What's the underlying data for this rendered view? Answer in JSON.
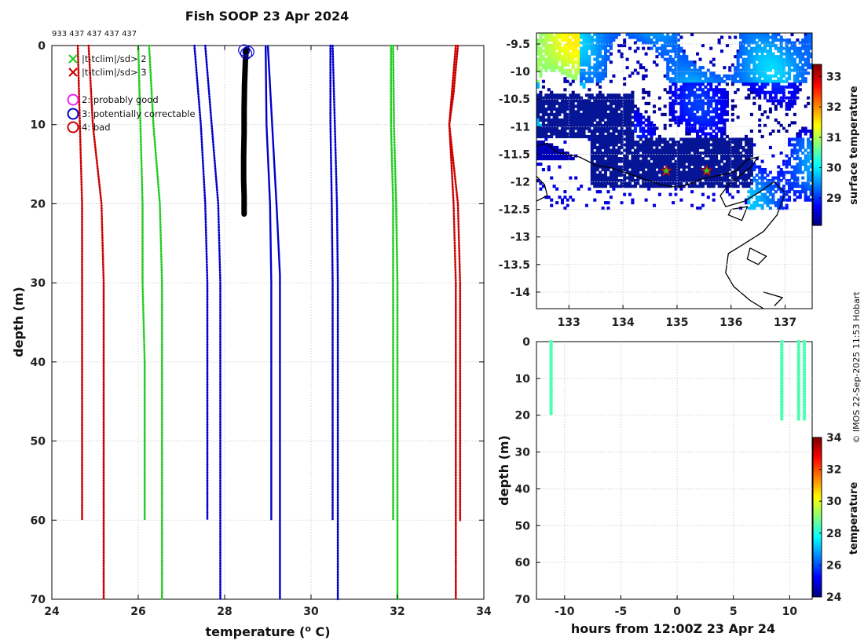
{
  "title": "Fish SOOP 23 Apr 2024",
  "counts_label": "933 437 437 437 437",
  "credit": "© IMOS 22-Sep-2025 11:53 Hobart",
  "legend": {
    "flag2": "|t-tclim|/sd> 2",
    "flag3": "|t-tclim|/sd> 3",
    "probably_good": "2: probably good",
    "potentially_correctable": "3: potentially correctable",
    "bad": "4: bad"
  },
  "colors": {
    "red": "#cc0000",
    "green": "#22cc22",
    "blue": "#0000cc",
    "black": "#000000",
    "magenta": "#ee22ee"
  },
  "chart_data": [
    {
      "id": "profile",
      "type": "line",
      "xlabel": "temperature (",
      "xlabel_sup": "o",
      "xlabel_end": " C)",
      "ylabel": "depth (m)",
      "xlim": [
        24,
        34
      ],
      "ylim": [
        70,
        0
      ],
      "xticks": [
        24,
        26,
        28,
        30,
        32,
        34
      ],
      "yticks": [
        0,
        10,
        20,
        30,
        40,
        50,
        60,
        70
      ],
      "series": [
        {
          "name": "clim -3sd (short)",
          "color": "red",
          "style": "dotted",
          "points": [
            [
              24.6,
              0
            ],
            [
              24.65,
              10
            ],
            [
              24.7,
              20
            ],
            [
              24.7,
              30
            ],
            [
              24.7,
              40
            ],
            [
              24.7,
              50
            ],
            [
              24.7,
              60
            ]
          ]
        },
        {
          "name": "clim -3sd",
          "color": "red",
          "style": "dotted",
          "points": [
            [
              24.85,
              0
            ],
            [
              24.95,
              10
            ],
            [
              25.15,
              20
            ],
            [
              25.2,
              30
            ],
            [
              25.2,
              40
            ],
            [
              25.2,
              50
            ],
            [
              25.2,
              60
            ],
            [
              25.2,
              70
            ]
          ]
        },
        {
          "name": "clim -2sd (short)",
          "color": "green",
          "style": "dotted",
          "points": [
            [
              26.0,
              0
            ],
            [
              26.05,
              10
            ],
            [
              26.1,
              20
            ],
            [
              26.1,
              30
            ],
            [
              26.15,
              40
            ],
            [
              26.15,
              50
            ],
            [
              26.15,
              60
            ]
          ]
        },
        {
          "name": "clim -2sd",
          "color": "green",
          "style": "dotted",
          "points": [
            [
              26.25,
              0
            ],
            [
              26.35,
              10
            ],
            [
              26.5,
              20
            ],
            [
              26.55,
              30
            ],
            [
              26.55,
              40
            ],
            [
              26.55,
              50
            ],
            [
              26.55,
              60
            ],
            [
              26.55,
              70
            ]
          ]
        },
        {
          "name": "clim mean (short)",
          "color": "blue",
          "style": "dotted",
          "points": [
            [
              27.3,
              0
            ],
            [
              27.45,
              10
            ],
            [
              27.55,
              20
            ],
            [
              27.6,
              30
            ],
            [
              27.6,
              40
            ],
            [
              27.6,
              50
            ],
            [
              27.6,
              60
            ]
          ]
        },
        {
          "name": "clim mean",
          "color": "blue",
          "style": "dotted",
          "points": [
            [
              27.55,
              0
            ],
            [
              27.7,
              10
            ],
            [
              27.85,
              20
            ],
            [
              27.9,
              30
            ],
            [
              27.9,
              40
            ],
            [
              27.9,
              50
            ],
            [
              27.9,
              60
            ],
            [
              27.9,
              70
            ]
          ]
        },
        {
          "name": "clim mean (solid, short)",
          "color": "blue",
          "style": "solid",
          "points": [
            [
              28.95,
              0
            ],
            [
              28.97,
              10
            ],
            [
              29.05,
              20
            ],
            [
              29.08,
              30
            ],
            [
              29.08,
              40
            ],
            [
              29.08,
              50
            ],
            [
              29.08,
              60
            ]
          ]
        },
        {
          "name": "clim mean (solid)",
          "color": "blue",
          "style": "solid",
          "points": [
            [
              29.0,
              0
            ],
            [
              29.1,
              10
            ],
            [
              29.2,
              20
            ],
            [
              29.28,
              29
            ],
            [
              29.28,
              40
            ],
            [
              29.28,
              50
            ],
            [
              29.28,
              60
            ],
            [
              29.28,
              70
            ]
          ]
        },
        {
          "name": "clim +sd (short)",
          "color": "blue",
          "style": "dotted",
          "points": [
            [
              30.45,
              0
            ],
            [
              30.45,
              10
            ],
            [
              30.48,
              20
            ],
            [
              30.5,
              30
            ],
            [
              30.5,
              40
            ],
            [
              30.5,
              50
            ],
            [
              30.5,
              60
            ]
          ]
        },
        {
          "name": "clim +sd",
          "color": "blue",
          "style": "dotted",
          "points": [
            [
              30.5,
              0
            ],
            [
              30.55,
              10
            ],
            [
              30.6,
              20
            ],
            [
              30.62,
              30
            ],
            [
              30.62,
              40
            ],
            [
              30.62,
              50
            ],
            [
              30.62,
              60
            ],
            [
              30.62,
              70
            ]
          ]
        },
        {
          "name": "clim +2sd (short)",
          "color": "green",
          "style": "dotted",
          "points": [
            [
              31.85,
              0
            ],
            [
              31.85,
              10
            ],
            [
              31.9,
              20
            ],
            [
              31.9,
              30
            ],
            [
              31.9,
              40
            ],
            [
              31.9,
              50
            ],
            [
              31.9,
              60
            ]
          ]
        },
        {
          "name": "clim +2sd",
          "color": "green",
          "style": "dotted",
          "points": [
            [
              31.9,
              0
            ],
            [
              31.92,
              10
            ],
            [
              31.97,
              20
            ],
            [
              32.0,
              30
            ],
            [
              32.0,
              40
            ],
            [
              32.0,
              50
            ],
            [
              32.0,
              60
            ],
            [
              32.0,
              70
            ]
          ]
        },
        {
          "name": "clim +3sd (short)",
          "color": "red",
          "style": "dotted",
          "points": [
            [
              33.35,
              0
            ],
            [
              33.2,
              10
            ],
            [
              33.4,
              20
            ],
            [
              33.45,
              30
            ],
            [
              33.45,
              40
            ],
            [
              33.45,
              50
            ],
            [
              33.45,
              60
            ]
          ]
        },
        {
          "name": "clim +3sd",
          "color": "red",
          "style": "dotted",
          "points": [
            [
              33.4,
              0
            ],
            [
              33.3,
              6
            ],
            [
              33.2,
              10
            ],
            [
              33.3,
              20
            ],
            [
              33.35,
              30
            ],
            [
              33.35,
              40
            ],
            [
              33.35,
              50
            ],
            [
              33.35,
              60
            ],
            [
              33.35,
              70
            ]
          ]
        },
        {
          "name": "observed profile",
          "color": "black",
          "style": "thick",
          "points": [
            [
              28.5,
              0.5
            ],
            [
              28.48,
              2
            ],
            [
              28.46,
              5
            ],
            [
              28.45,
              8
            ],
            [
              28.45,
              11
            ],
            [
              28.44,
              14
            ],
            [
              28.44,
              17
            ],
            [
              28.45,
              19
            ],
            [
              28.45,
              21.3
            ]
          ]
        }
      ],
      "qc_markers": [
        {
          "x": 28.45,
          "y": 0.6,
          "color": "blue"
        },
        {
          "x": 28.55,
          "y": 0.8,
          "color": "blue"
        },
        {
          "x": 28.5,
          "y": 1.0,
          "color": "blue"
        }
      ]
    },
    {
      "id": "map",
      "type": "heatmap",
      "colorbar_label": "surface temperature",
      "xlim": [
        132.4,
        137.5
      ],
      "ylim": [
        -14.3,
        -9.3
      ],
      "xticks": [
        133,
        134,
        135,
        136,
        137
      ],
      "yticks": [
        -9.5,
        -10,
        -10.5,
        -11,
        -11.5,
        -12,
        -12.5,
        -13,
        -13.5,
        -14
      ],
      "xtick_labels": [
        "133",
        "134",
        "135",
        "136",
        "137"
      ],
      "ytick_labels": [
        "-9.5",
        "-10",
        "-10.5",
        "-11",
        "-11.5",
        "-12",
        "-12.5",
        "-13",
        "-13.5",
        "-14"
      ],
      "clim": [
        28.1,
        33.4
      ],
      "colorbar_ticks": [
        29,
        30,
        31,
        32,
        33
      ],
      "stations": [
        {
          "lon": 134.8,
          "lat": -11.8
        },
        {
          "lon": 135.55,
          "lat": -11.8
        }
      ]
    },
    {
      "id": "time_depth",
      "type": "scatter",
      "xlabel": "hours from 12:00Z 23 Apr 24",
      "ylabel": "depth (m)",
      "colorbar_label": "temperature",
      "xlim": [
        -12.5,
        12
      ],
      "ylim": [
        70,
        0
      ],
      "xticks": [
        -10,
        -5,
        0,
        5,
        10
      ],
      "yticks": [
        0,
        10,
        20,
        30,
        40,
        50,
        60,
        70
      ],
      "clim": [
        24,
        34
      ],
      "colorbar_ticks": [
        24,
        26,
        28,
        30,
        32,
        34
      ],
      "profiles": [
        {
          "hour": -11.2,
          "max_depth": 19.5,
          "temp": 28.5
        },
        {
          "hour": 9.3,
          "max_depth": 21.5,
          "temp": 28.5
        },
        {
          "hour": 10.8,
          "max_depth": 21.5,
          "temp": 28.5
        },
        {
          "hour": 11.3,
          "max_depth": 21.5,
          "temp": 28.5
        }
      ]
    }
  ]
}
